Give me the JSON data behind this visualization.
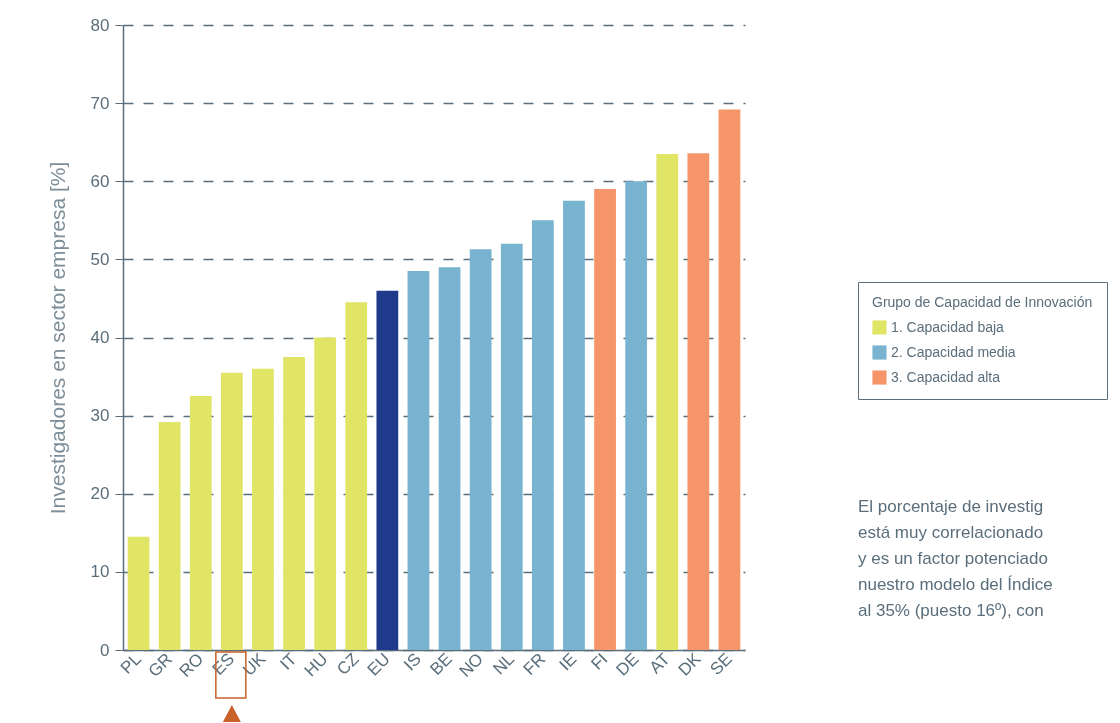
{
  "chart_data": {
    "type": "bar",
    "ylabel": "Investigadores en sector empresa [%]",
    "legend_title": "Grupo de Capacidad de Innovación",
    "categories": [
      "PL",
      "GR",
      "RO",
      "ES",
      "UK",
      "IT",
      "HU",
      "CZ",
      "EU",
      "IS",
      "BE",
      "NO",
      "NL",
      "FR",
      "IE",
      "FI",
      "DE",
      "AT",
      "DK",
      "SE"
    ],
    "series": [
      {
        "name": "1. Capacidad baja",
        "color": "#e0e566",
        "values": [
          14.5,
          29.2,
          32.5,
          35.5,
          36,
          37.5,
          40,
          44.5,
          null,
          null,
          null,
          null,
          null,
          null,
          null,
          null,
          null,
          63.5,
          null,
          null
        ]
      },
      {
        "name": "2. Capacidad media",
        "color": "#78b3d0",
        "values": [
          null,
          null,
          null,
          null,
          null,
          null,
          null,
          null,
          null,
          48.5,
          49,
          51.3,
          52,
          55,
          57.5,
          null,
          60,
          null,
          null,
          null
        ]
      },
      {
        "name": "3. Capacidad alta",
        "color": "#f6956a",
        "values": [
          null,
          null,
          null,
          null,
          null,
          null,
          null,
          null,
          null,
          null,
          null,
          null,
          null,
          null,
          null,
          59,
          null,
          null,
          63.6,
          69.2
        ]
      },
      {
        "color": "#1f3a8a",
        "values": [
          null,
          null,
          null,
          null,
          null,
          null,
          null,
          null,
          46,
          null,
          null,
          null,
          null,
          null,
          null,
          null,
          null,
          null,
          null,
          null
        ]
      }
    ],
    "ylim": [
      0,
      80
    ],
    "yticks": [
      0,
      10,
      20,
      30,
      40,
      50,
      60,
      70,
      80
    ],
    "grid": "y",
    "legend": "right",
    "annotations": [
      "El porcentaje de investig\nestá muy correlacionado\ny es un factor potenciado\nnuestro modelo del Índice\nal 35% (puesto 16º), con"
    ]
  }
}
